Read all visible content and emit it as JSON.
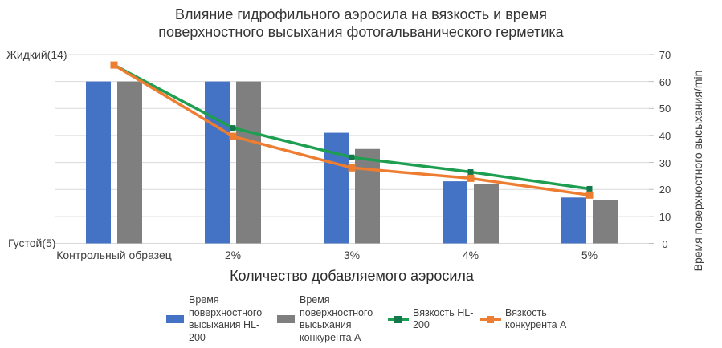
{
  "chart_data": {
    "type": "combo-bar-line",
    "title": "Влияние гидрофильного аэросила на вязкость и время поверхностного высыхания фотогальванического герметика",
    "categories": [
      "Контрольный образец",
      "2%",
      "3%",
      "4%",
      "5%"
    ],
    "bar_series": [
      {
        "name": "Время поверхностного высыхания HL-200",
        "color": "#4472C4",
        "axis": "right",
        "values": [
          60,
          60,
          41,
          23,
          17
        ]
      },
      {
        "name": "Время поверхностного высыхания конкурента А",
        "color": "#7F7F7F",
        "axis": "right",
        "values": [
          60,
          60,
          35,
          22,
          16
        ]
      }
    ],
    "line_series": [
      {
        "name": "Вязкость HL-200",
        "color": "#1E9E50",
        "marker_color": "#14784C",
        "axis": "left",
        "values": [
          13.5,
          10.5,
          9.1,
          8.4,
          7.6
        ]
      },
      {
        "name": "Вязкость конкурента А",
        "color": "#ED7D31",
        "marker_color": "#ED7D31",
        "axis": "left",
        "values": [
          13.5,
          10.1,
          8.6,
          8.1,
          7.3
        ]
      }
    ],
    "left_axis": {
      "top_label": "Жидкий(14)",
      "bottom_label": "Густой(5)",
      "min": 5,
      "max": 14
    },
    "right_axis": {
      "label": "Время поверхностного высыхания/min",
      "min": 0,
      "max": 70,
      "ticks": [
        0,
        10,
        20,
        30,
        40,
        50,
        60,
        70
      ]
    },
    "xlabel": "Количество добавляемого аэросила",
    "grid": true,
    "gridline_color": "#d9d9d9",
    "tick_mark_color": "#bfbfbf",
    "legend_position": "bottom"
  }
}
